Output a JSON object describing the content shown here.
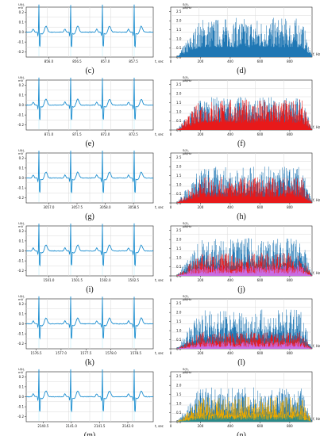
{
  "panels": [
    {
      "id": "c",
      "caption": "(c)",
      "type": "ecg",
      "ylabel": "U(t), mV",
      "xlabel": "t, sec",
      "yticks": [
        "0.2",
        "0.1",
        "0.0",
        "-0.1",
        "-0.2"
      ],
      "xticks": [
        "856.0",
        "856.5",
        "857.0",
        "857.5"
      ],
      "ylim": [
        -0.25,
        0.25
      ],
      "xlim": [
        855.6,
        857.85
      ]
    },
    {
      "id": "d",
      "caption": "(d)",
      "type": "spectrum",
      "ylabel": "S(f), μB/Hz",
      "xlabel": "f, Hz",
      "yticks": [
        "2.5",
        "2.0",
        "1.5",
        "1.0",
        "0.5",
        "0.0"
      ],
      "xticks": [
        "0",
        "200",
        "400",
        "600",
        "800"
      ],
      "ylim": [
        0,
        2.75
      ],
      "xlim": [
        0,
        950
      ],
      "series": [
        {
          "color": "#1f77b4",
          "level": 1.25
        }
      ]
    },
    {
      "id": "e",
      "caption": "(e)",
      "type": "ecg",
      "ylabel": "U(t), mV",
      "xlabel": "t, sec",
      "yticks": [
        "0.2",
        "0.1",
        "0.0",
        "-0.1",
        "-0.2"
      ],
      "xticks": [
        "871.0",
        "871.5",
        "872.0",
        "872.5"
      ],
      "ylim": [
        -0.25,
        0.25
      ],
      "xlim": [
        870.6,
        872.85
      ]
    },
    {
      "id": "f",
      "caption": "(f)",
      "type": "spectrum",
      "ylabel": "S(f), μB/Hz",
      "xlabel": "f, Hz",
      "yticks": [
        "2.5",
        "2.0",
        "1.5",
        "1.0",
        "0.5",
        "0.0"
      ],
      "xticks": [
        "0",
        "200",
        "400",
        "600",
        "800"
      ],
      "ylim": [
        0,
        2.75
      ],
      "xlim": [
        0,
        950
      ],
      "series": [
        {
          "color": "#1f77b4",
          "level": 1.05
        },
        {
          "color": "#e8191a",
          "level": 1.0
        }
      ]
    },
    {
      "id": "g",
      "caption": "(g)",
      "type": "ecg",
      "ylabel": "U(t), mV",
      "xlabel": "t, sec",
      "yticks": [
        "0.2",
        "0.1",
        "0.0",
        "-0.1",
        "-0.2"
      ],
      "xticks": [
        "3057.0",
        "3057.5",
        "3058.0",
        "3058.5"
      ],
      "ylim": [
        -0.25,
        0.25
      ],
      "xlim": [
        3056.6,
        3058.85
      ]
    },
    {
      "id": "h",
      "caption": "(h)",
      "type": "spectrum",
      "ylabel": "S(f), μB/Hz",
      "xlabel": "f, Hz",
      "yticks": [
        "2.5",
        "2.0",
        "1.5",
        "1.0",
        "0.5",
        "0.0"
      ],
      "xticks": [
        "0",
        "200",
        "400",
        "600",
        "800"
      ],
      "ylim": [
        0,
        2.75
      ],
      "xlim": [
        0,
        950
      ],
      "series": [
        {
          "color": "#1f77b4",
          "level": 1.15
        },
        {
          "color": "#e8191a",
          "level": 0.85
        }
      ]
    },
    {
      "id": "i",
      "caption": "(i)",
      "type": "ecg",
      "ylabel": "U(t), mV",
      "xlabel": "t, sec",
      "yticks": [
        "0.2",
        "0.1",
        "0.0",
        "-0.1",
        "-0.2"
      ],
      "xticks": [
        "1501.0",
        "1501.5",
        "1502.0",
        "1502.5"
      ],
      "ylim": [
        -0.25,
        0.25
      ],
      "xlim": [
        1500.6,
        1502.85
      ]
    },
    {
      "id": "j",
      "caption": "(j)",
      "type": "spectrum",
      "ylabel": "S(f), μB/Hz",
      "xlabel": "f, Hz",
      "yticks": [
        "2.5",
        "2.0",
        "1.5",
        "1.0",
        "0.5",
        "0.0"
      ],
      "xticks": [
        "0",
        "200",
        "400",
        "600",
        "800"
      ],
      "ylim": [
        0,
        2.75
      ],
      "xlim": [
        0,
        950
      ],
      "series": [
        {
          "color": "#1f77b4",
          "level": 1.2
        },
        {
          "color": "#e8191a",
          "level": 0.75
        },
        {
          "color": "#c96de3",
          "level": 0.35
        }
      ]
    },
    {
      "id": "k",
      "caption": "(k)",
      "type": "ecg",
      "ylabel": "U(t), mV",
      "xlabel": "t, sec",
      "yticks": [
        "0.2",
        "0.1",
        "0.0",
        "-0.1",
        "-0.2"
      ],
      "xticks": [
        "1576.5",
        "1577.0",
        "1577.5",
        "1578.0",
        "1578.5"
      ],
      "ylim": [
        -0.25,
        0.25
      ],
      "xlim": [
        1576.3,
        1578.85
      ]
    },
    {
      "id": "l",
      "caption": "(l)",
      "type": "spectrum",
      "ylabel": "S(f), μB/Hz",
      "xlabel": "f, Hz",
      "yticks": [
        "2.5",
        "2.0",
        "1.5",
        "1.0",
        "0.5",
        "0.0"
      ],
      "xticks": [
        "0",
        "200",
        "400",
        "600",
        "800"
      ],
      "ylim": [
        0,
        2.75
      ],
      "xlim": [
        0,
        950
      ],
      "series": [
        {
          "color": "#1f77b4",
          "level": 1.25
        },
        {
          "color": "#e8191a",
          "level": 0.55
        },
        {
          "color": "#c96de3",
          "level": 0.25
        }
      ]
    },
    {
      "id": "m",
      "caption": "(m)",
      "type": "ecg",
      "ylabel": "U(t), mV",
      "xlabel": "t, sec",
      "yticks": [
        "0.2",
        "0.1",
        "0.0",
        "-0.1",
        "-0.2"
      ],
      "xticks": [
        "2140.5",
        "2141.0",
        "2141.5",
        "2142.0"
      ],
      "ylim": [
        -0.25,
        0.25
      ],
      "xlim": [
        2140.2,
        2142.45
      ]
    },
    {
      "id": "n",
      "caption": "(n)",
      "type": "spectrum",
      "ylabel": "S(f), μB/Hz",
      "xlabel": "f, Hz",
      "yticks": [
        "2.5",
        "2.0",
        "1.5",
        "1.0",
        "0.5",
        "0.0"
      ],
      "xticks": [
        "0",
        "200",
        "400",
        "600",
        "800"
      ],
      "ylim": [
        0,
        2.75
      ],
      "xlim": [
        0,
        950
      ],
      "series": [
        {
          "color": "#1f77b4",
          "level": 1.1
        },
        {
          "color": "#e8a700",
          "level": 0.8
        },
        {
          "color": "#2a8a8a",
          "level": 0.25
        }
      ]
    }
  ],
  "colors": {
    "ecg_line": "#1f8fd0",
    "ecg_guides": "#5bd3f0",
    "grid": "#d9d9d9",
    "axis": "#222222"
  }
}
